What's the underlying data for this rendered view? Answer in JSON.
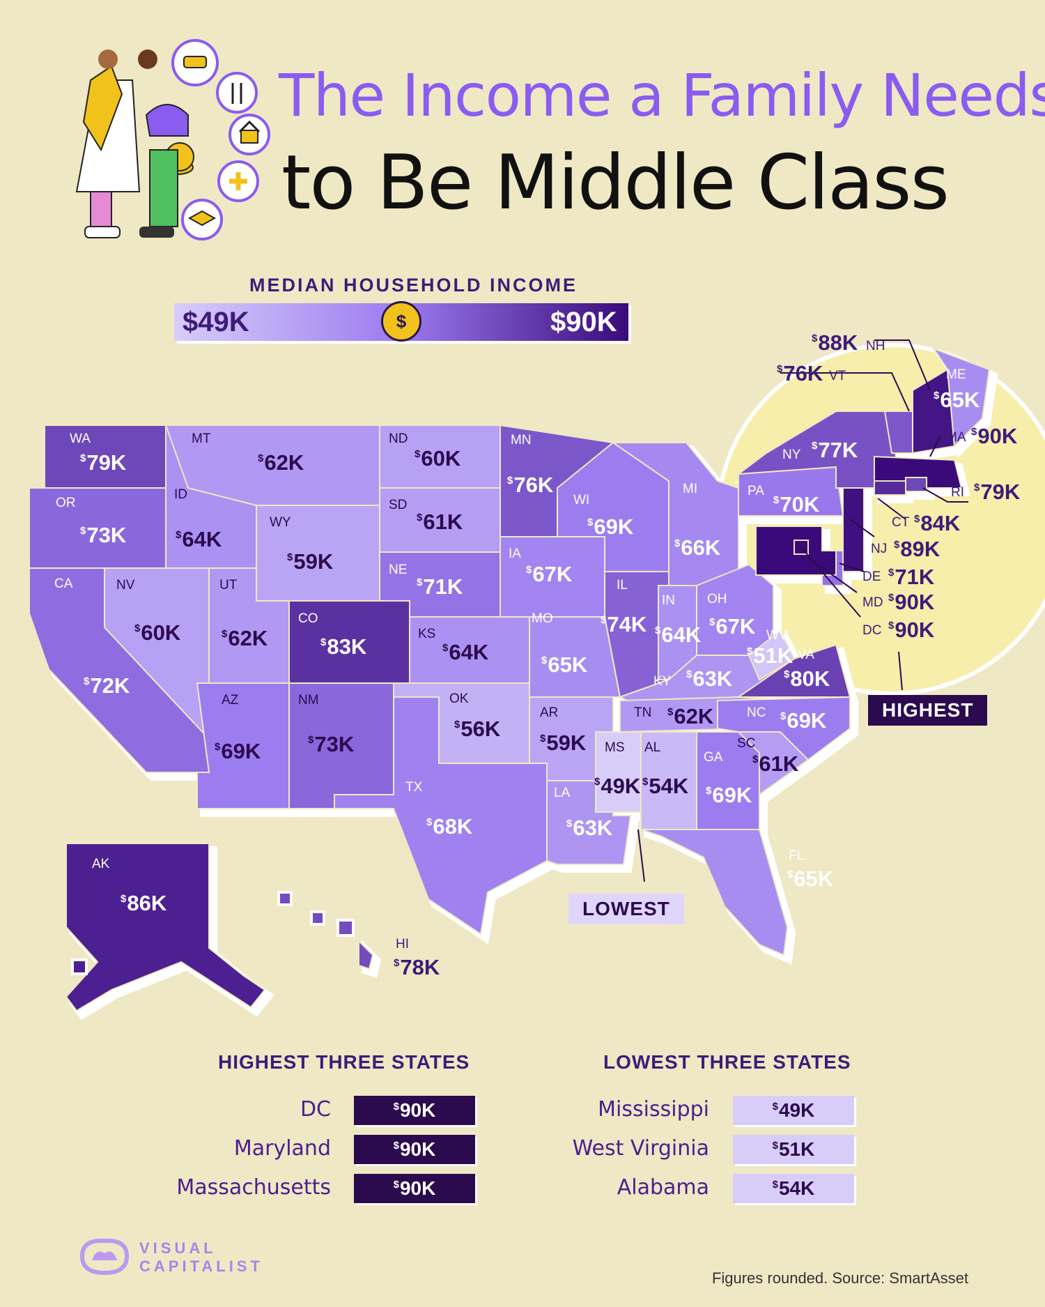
{
  "title": {
    "line1": "The Income a Family Needs",
    "line2": "to Be Middle Class"
  },
  "legend": {
    "title": "MEDIAN HOUSEHOLD INCOME",
    "min": "$49K",
    "max": "$90K",
    "coin": "$"
  },
  "colors": {
    "min": "#d8cdf9",
    "mid": "#9b7bef",
    "max": "#3a0a7a",
    "background": "#efe8c4"
  },
  "states": [
    {
      "abbr": "WA",
      "value": 79
    },
    {
      "abbr": "OR",
      "value": 73
    },
    {
      "abbr": "CA",
      "value": 72
    },
    {
      "abbr": "NV",
      "value": 60
    },
    {
      "abbr": "ID",
      "value": 64
    },
    {
      "abbr": "MT",
      "value": 62
    },
    {
      "abbr": "WY",
      "value": 59
    },
    {
      "abbr": "UT",
      "value": 62
    },
    {
      "abbr": "AZ",
      "value": 69
    },
    {
      "abbr": "CO",
      "value": 83
    },
    {
      "abbr": "NM",
      "value": 73
    },
    {
      "abbr": "ND",
      "value": 60
    },
    {
      "abbr": "SD",
      "value": 61
    },
    {
      "abbr": "NE",
      "value": 71
    },
    {
      "abbr": "KS",
      "value": 64
    },
    {
      "abbr": "OK",
      "value": 56
    },
    {
      "abbr": "TX",
      "value": 68
    },
    {
      "abbr": "MN",
      "value": 76
    },
    {
      "abbr": "IA",
      "value": 67
    },
    {
      "abbr": "MO",
      "value": 65
    },
    {
      "abbr": "AR",
      "value": 59
    },
    {
      "abbr": "LA",
      "value": 63
    },
    {
      "abbr": "WI",
      "value": 69
    },
    {
      "abbr": "IL",
      "value": 74
    },
    {
      "abbr": "MI",
      "value": 66
    },
    {
      "abbr": "IN",
      "value": 64
    },
    {
      "abbr": "OH",
      "value": 67
    },
    {
      "abbr": "KY",
      "value": 63
    },
    {
      "abbr": "TN",
      "value": 62
    },
    {
      "abbr": "MS",
      "value": 49
    },
    {
      "abbr": "AL",
      "value": 54
    },
    {
      "abbr": "GA",
      "value": 69
    },
    {
      "abbr": "FL",
      "value": 65
    },
    {
      "abbr": "SC",
      "value": 61
    },
    {
      "abbr": "NC",
      "value": 69
    },
    {
      "abbr": "VA",
      "value": 80
    },
    {
      "abbr": "WV",
      "value": 51
    },
    {
      "abbr": "PA",
      "value": 70
    },
    {
      "abbr": "NY",
      "value": 77
    },
    {
      "abbr": "VT",
      "value": 76
    },
    {
      "abbr": "NH",
      "value": 88
    },
    {
      "abbr": "ME",
      "value": 65
    },
    {
      "abbr": "MA",
      "value": 90
    },
    {
      "abbr": "RI",
      "value": 79
    },
    {
      "abbr": "CT",
      "value": 84
    },
    {
      "abbr": "NJ",
      "value": 89
    },
    {
      "abbr": "DE",
      "value": 71
    },
    {
      "abbr": "MD",
      "value": 90
    },
    {
      "abbr": "DC",
      "value": 90
    },
    {
      "abbr": "AK",
      "value": 86
    },
    {
      "abbr": "HI",
      "value": 78
    }
  ],
  "callouts": {
    "highest": "HIGHEST",
    "lowest": "LOWEST"
  },
  "highest": {
    "title": "HIGHEST THREE STATES",
    "rows": [
      {
        "name": "DC",
        "value": "90K"
      },
      {
        "name": "Maryland",
        "value": "90K"
      },
      {
        "name": "Massachusetts",
        "value": "90K"
      }
    ]
  },
  "lowest": {
    "title": "LOWEST THREE STATES",
    "rows": [
      {
        "name": "Mississippi",
        "value": "49K"
      },
      {
        "name": "West Virginia",
        "value": "51K"
      },
      {
        "name": "Alabama",
        "value": "54K"
      }
    ]
  },
  "currency": "$",
  "source": "Figures rounded. Source: SmartAsset",
  "logo": {
    "line1": "VISUAL",
    "line2": "CAPITALIST"
  }
}
